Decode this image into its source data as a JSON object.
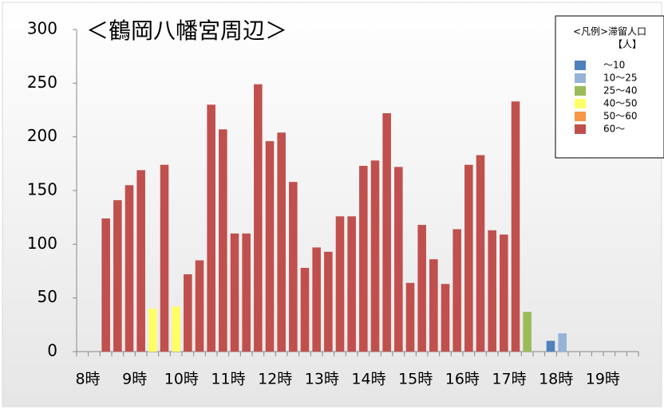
{
  "chart_data": {
    "type": "bar",
    "title": "＜鶴岡八幡宮周辺＞",
    "categories": [
      "8時",
      null,
      null,
      null,
      "9時",
      null,
      null,
      null,
      "10時",
      null,
      null,
      null,
      "11時",
      null,
      null,
      null,
      "12時",
      null,
      null,
      null,
      "13時",
      null,
      null,
      null,
      "14時",
      null,
      null,
      null,
      "15時",
      null,
      null,
      null,
      "16時",
      null,
      null,
      null,
      "17時",
      null,
      null,
      null,
      "18時",
      null,
      null,
      null,
      "19時",
      null,
      null,
      null
    ],
    "values": [
      null,
      null,
      124,
      141,
      155,
      169,
      40,
      174,
      42,
      72,
      85,
      230,
      207,
      110,
      110,
      249,
      196,
      204,
      158,
      78,
      97,
      93,
      126,
      126,
      173,
      178,
      222,
      172,
      64,
      118,
      86,
      63,
      114,
      174,
      183,
      113,
      109,
      233,
      37,
      null,
      10,
      17,
      null,
      null,
      null,
      null,
      null,
      null
    ],
    "bar_colors": [
      null,
      null,
      "#c0504d",
      "#c0504d",
      "#c0504d",
      "#c0504d",
      "#ffff66",
      "#c0504d",
      "#ffff66",
      "#c0504d",
      "#c0504d",
      "#c0504d",
      "#c0504d",
      "#c0504d",
      "#c0504d",
      "#c0504d",
      "#c0504d",
      "#c0504d",
      "#c0504d",
      "#c0504d",
      "#c0504d",
      "#c0504d",
      "#c0504d",
      "#c0504d",
      "#c0504d",
      "#c0504d",
      "#c0504d",
      "#c0504d",
      "#c0504d",
      "#c0504d",
      "#c0504d",
      "#c0504d",
      "#c0504d",
      "#c0504d",
      "#c0504d",
      "#c0504d",
      "#c0504d",
      "#c0504d",
      "#9bbb59",
      null,
      "#4f81bd",
      "#95b3d7",
      null,
      null,
      null,
      null,
      null,
      null
    ],
    "ylim": [
      0,
      300
    ],
    "yticks": [
      0,
      50,
      100,
      150,
      200,
      250,
      300
    ],
    "legend": {
      "title": "<凡例>滞留人口",
      "subtitle": "【人】",
      "position": "upper right",
      "entries": [
        {
          "name": "～10",
          "color": "#4f81bd"
        },
        {
          "name": "10～25",
          "color": "#95b3d7"
        },
        {
          "name": "25～40",
          "color": "#9bbb59"
        },
        {
          "name": "40～50",
          "color": "#ffff66"
        },
        {
          "name": "50～60",
          "color": "#f79646"
        },
        {
          "name": "60～",
          "color": "#c0504d"
        }
      ]
    }
  }
}
